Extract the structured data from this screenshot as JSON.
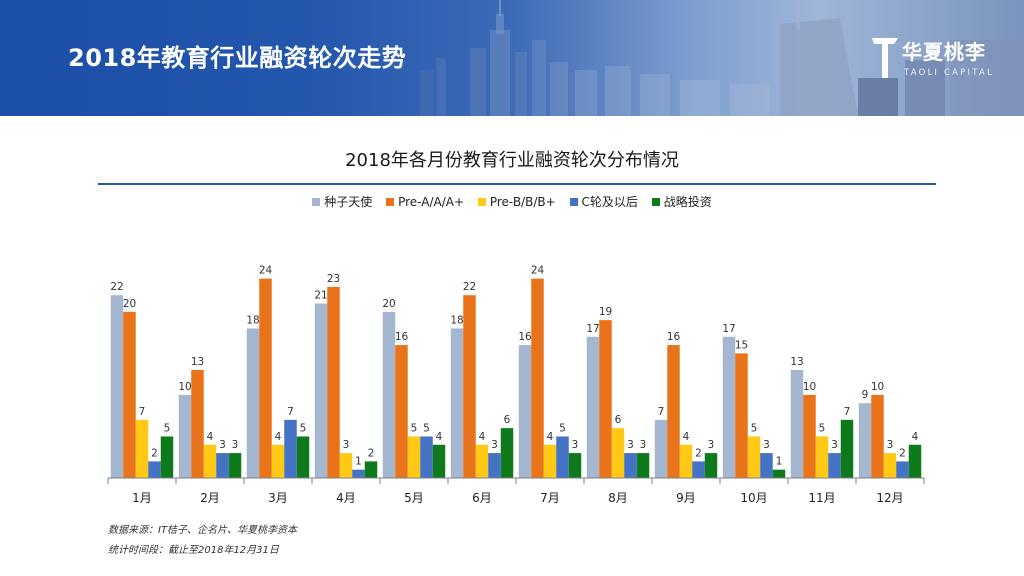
{
  "header": {
    "title": "2018年教育行业融资轮次走势",
    "logo_name": "华夏桃李",
    "logo_sub": "TAOLI CAPITAL"
  },
  "colors": {
    "header_blue": "#1b4fa8",
    "rule": "#2a56a8",
    "axis": "#7f7f7f"
  },
  "chart_data": {
    "type": "bar",
    "title": "2018年各月份教育行业融资轮次分布情况",
    "xlabel": "",
    "ylabel": "",
    "ylim": [
      0,
      26
    ],
    "grid": false,
    "legend_position": "top",
    "categories": [
      "1月",
      "2月",
      "3月",
      "4月",
      "5月",
      "6月",
      "7月",
      "8月",
      "9月",
      "10月",
      "11月",
      "12月"
    ],
    "series": [
      {
        "name": "种子天使",
        "color": "#a5b6d0",
        "values": [
          22,
          10,
          18,
          21,
          20,
          18,
          16,
          17,
          7,
          17,
          13,
          9
        ]
      },
      {
        "name": "Pre-A/A/A+",
        "color": "#e8731a",
        "values": [
          20,
          13,
          24,
          23,
          16,
          22,
          24,
          19,
          16,
          15,
          10,
          10
        ]
      },
      {
        "name": "Pre-B/B/B+",
        "color": "#ffc915",
        "values": [
          7,
          4,
          4,
          3,
          5,
          4,
          4,
          6,
          4,
          5,
          5,
          3
        ]
      },
      {
        "name": "C轮及以后",
        "color": "#4472c4",
        "values": [
          2,
          3,
          7,
          1,
          5,
          3,
          5,
          3,
          2,
          3,
          3,
          2
        ]
      },
      {
        "name": "战略投资",
        "color": "#0f7a1c",
        "values": [
          5,
          3,
          5,
          2,
          4,
          6,
          3,
          3,
          3,
          1,
          7,
          4
        ]
      }
    ]
  },
  "footnotes": {
    "source": "数据来源：IT桔子、企名片、华夏桃李资本",
    "period": "统计时间段：截止至2018年12月31日"
  }
}
